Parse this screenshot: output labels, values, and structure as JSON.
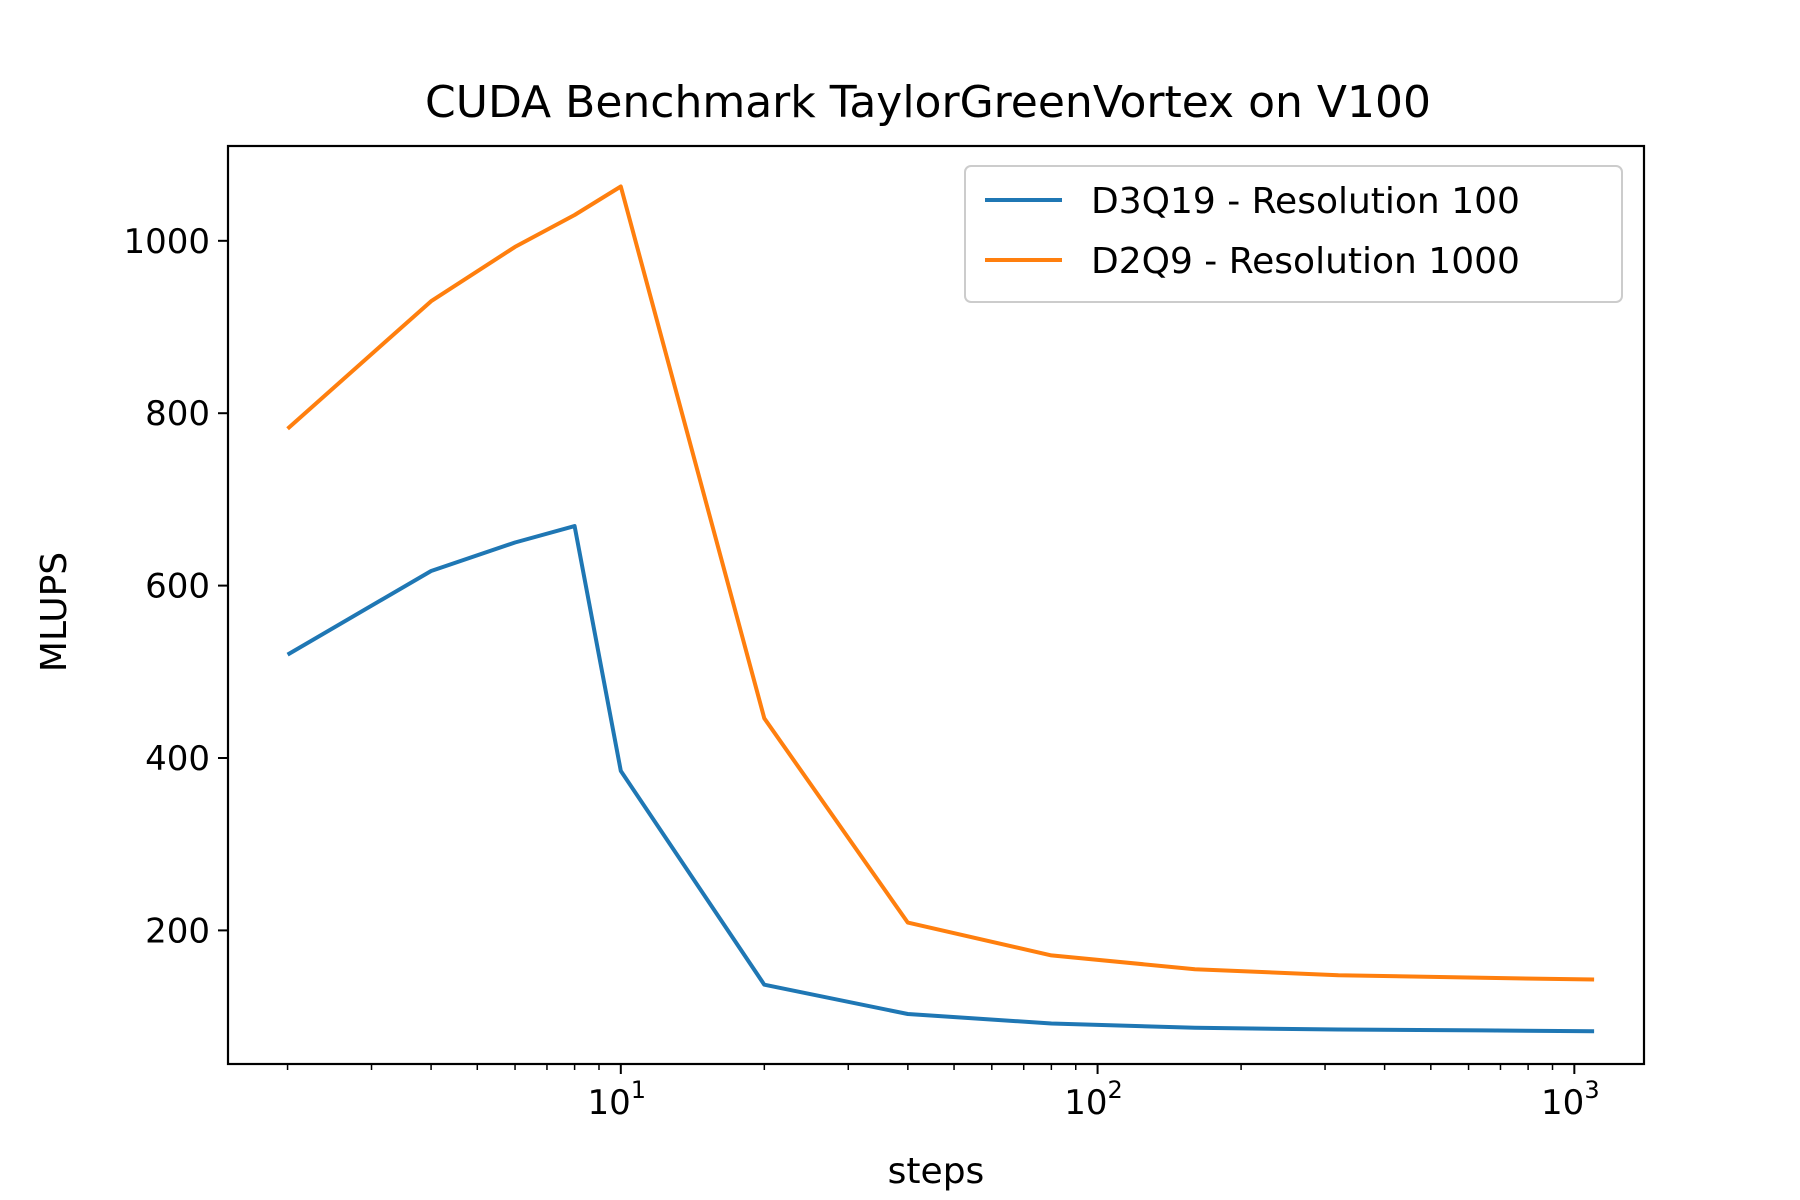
{
  "chart_data": {
    "type": "line",
    "title": "CUDA Benchmark TaylorGreenVortex on V100",
    "xlabel": "steps",
    "ylabel": "MLUPS",
    "xscale": "log",
    "xlim": [
      1.5,
      1400
    ],
    "ylim": [
      45,
      1110
    ],
    "x_ticks": [
      {
        "base": "10",
        "exp": "1",
        "value": 10
      },
      {
        "base": "10",
        "exp": "2",
        "value": 100
      },
      {
        "base": "10",
        "exp": "3",
        "value": 1000
      }
    ],
    "y_ticks": [
      200,
      400,
      600,
      800,
      1000
    ],
    "legend_position": "top-right",
    "grid": false,
    "series": [
      {
        "name": "D3Q19 - Resolution 100",
        "color": "#1f77b4",
        "x": [
          2,
          4,
          6,
          8,
          10,
          20,
          40,
          80,
          160,
          320,
          640,
          1100
        ],
        "y": [
          520,
          617,
          650,
          669,
          385,
          137,
          103,
          92,
          87,
          85,
          84,
          83
        ]
      },
      {
        "name": "D2Q9 - Resolution 1000",
        "color": "#ff7f0e",
        "x": [
          2,
          4,
          6,
          8,
          10,
          20,
          40,
          80,
          160,
          320,
          640,
          1100
        ],
        "y": [
          782,
          930,
          993,
          1030,
          1063,
          446,
          209,
          171,
          155,
          148,
          145,
          143
        ]
      }
    ]
  }
}
